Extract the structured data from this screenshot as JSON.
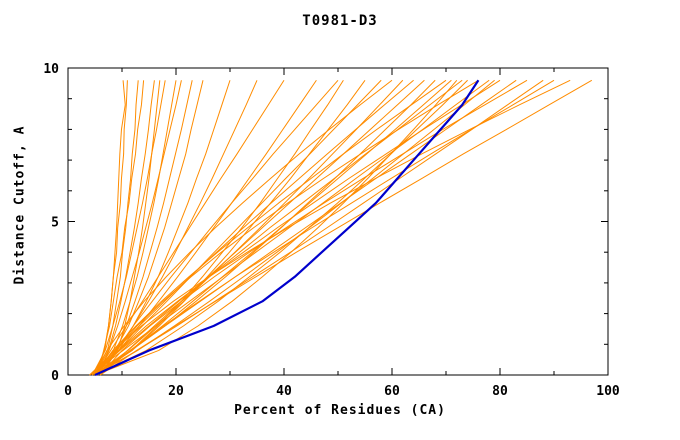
{
  "chart_data": {
    "type": "line",
    "title": "T0981-D3",
    "xlabel": "Percent of Residues (CA)",
    "ylabel": "Distance Cutoff, A",
    "xlim": [
      0,
      100
    ],
    "ylim": [
      0,
      10
    ],
    "x_major_ticks": [
      0,
      20,
      40,
      60,
      80,
      100
    ],
    "x_minor_ticks": [
      10,
      30,
      50,
      70,
      90
    ],
    "y_major_ticks": [
      0,
      5,
      10
    ],
    "y_minor_ticks": [
      1,
      2,
      3,
      4,
      6,
      7,
      8,
      9
    ],
    "grid": false,
    "legend": "none",
    "colors": {
      "model": "#ff8c00",
      "highlight": "#0000cc",
      "axis": "#000000",
      "background": "#ffffff"
    },
    "y_samples": [
      0,
      0.8,
      1.6,
      2.4,
      3.2,
      4.0,
      4.8,
      5.6,
      6.4,
      7.2,
      8.0,
      8.8,
      9.6
    ],
    "series": {
      "highlight": {
        "name": "selected-model",
        "color": "#0000cc",
        "x": [
          5,
          15,
          27,
          36,
          42,
          47,
          52,
          57,
          61,
          65,
          69,
          73,
          76
        ]
      },
      "models": [
        [
          5,
          6.7,
          7.5,
          8,
          8.4,
          9,
          9.2,
          9.7,
          9.9,
          10.3,
          10.4,
          10.8,
          11
        ],
        [
          4.5,
          7.3,
          8.3,
          9,
          9.7,
          10.1,
          10.7,
          11.1,
          11.6,
          11.9,
          12.4,
          12.6,
          13
        ],
        [
          5.5,
          6.6,
          7.7,
          8.4,
          9.1,
          10,
          10.5,
          11.3,
          11.8,
          12.5,
          12.9,
          13.6,
          14
        ],
        [
          5,
          7.5,
          8.8,
          9.8,
          10.7,
          11.5,
          12.3,
          13,
          13.6,
          14.3,
          14.9,
          15.4,
          16
        ],
        [
          6,
          9.2,
          10.5,
          11.5,
          12.3,
          13.1,
          13.8,
          14.4,
          15,
          15.5,
          16,
          16.5,
          17
        ],
        [
          4.5,
          6.9,
          8.3,
          9.6,
          10.8,
          11.8,
          12.8,
          13.8,
          14.7,
          15.5,
          16.4,
          17.2,
          18
        ],
        [
          5,
          8.4,
          10.1,
          11.5,
          12.8,
          13.9,
          14.9,
          15.9,
          16.8,
          17.6,
          18.4,
          19.2,
          20
        ],
        [
          5.5,
          7.6,
          9.2,
          10.6,
          11.9,
          13.2,
          14.4,
          15.6,
          16.7,
          17.8,
          18.9,
          20,
          21
        ],
        [
          6,
          9,
          10.8,
          12.4,
          13.9,
          15.2,
          16.5,
          17.7,
          18.8,
          19.9,
          21,
          22,
          23
        ],
        [
          4,
          8.7,
          11.2,
          13.1,
          14.9,
          16.4,
          17.9,
          19.2,
          20.5,
          21.8,
          22.8,
          23.9,
          25
        ],
        [
          5,
          6.8,
          7.5,
          8,
          8.4,
          8.7,
          9,
          9.2,
          9.4,
          9.6,
          9.9,
          10.6,
          10.2
        ],
        [
          5,
          9.4,
          12.1,
          14.5,
          16.7,
          18.6,
          20.4,
          22.2,
          23.8,
          25.5,
          27,
          28.5,
          30
        ],
        [
          5,
          9.1,
          12.1,
          14.9,
          17.5,
          19.9,
          22.2,
          24.5,
          26.7,
          28.8,
          30.9,
          33,
          35
        ],
        [
          5,
          7.9,
          10.8,
          13.8,
          16.7,
          19.6,
          22.5,
          25.4,
          28.3,
          31.3,
          34.2,
          37.1,
          40
        ],
        [
          5,
          9.4,
          13.2,
          16.8,
          20.3,
          23.7,
          27,
          30.3,
          33.5,
          36.7,
          39.8,
          42.9,
          46
        ],
        [
          6,
          8.9,
          12.1,
          15.6,
          19.1,
          22.8,
          26.5,
          30.3,
          34.2,
          38,
          42,
          46,
          50
        ],
        [
          4.5,
          11.7,
          16.6,
          21,
          24.9,
          28.6,
          32.2,
          35.6,
          38.8,
          42,
          45,
          48.1,
          51
        ],
        [
          5,
          11.9,
          16.9,
          21.5,
          25.8,
          29.9,
          33.7,
          37.5,
          41.2,
          44.7,
          48.2,
          51.7,
          55
        ],
        [
          5,
          9.4,
          13.8,
          18.3,
          22.7,
          27.1,
          31.5,
          35.9,
          40.3,
          44.8,
          49.2,
          53.6,
          58
        ],
        [
          5,
          7.2,
          10.4,
          14.1,
          18.2,
          22.6,
          27.3,
          32.3,
          37.5,
          42.8,
          48.4,
          54.1,
          60
        ],
        [
          5,
          11.1,
          16.3,
          21.4,
          26.2,
          30.9,
          35.6,
          40.1,
          44.6,
          49,
          53.4,
          57.7,
          62
        ],
        [
          5,
          8.8,
          13.2,
          17.9,
          22.6,
          27.5,
          32.5,
          37.6,
          42.8,
          48,
          53.3,
          58.6,
          64
        ],
        [
          6,
          11,
          16,
          21,
          26,
          31,
          36,
          41,
          46,
          51,
          56,
          61,
          66
        ],
        [
          4,
          11.7,
          18,
          23.7,
          29.2,
          34.4,
          39.5,
          44.4,
          49.4,
          54.1,
          58.8,
          63.5,
          68
        ],
        [
          5,
          8.3,
          12.6,
          17.3,
          22.4,
          27.7,
          33.3,
          39,
          45,
          51,
          57.2,
          63.6,
          70
        ],
        [
          5.5,
          11.7,
          17.5,
          23.1,
          28.6,
          34.1,
          39.4,
          44.7,
          50,
          55.3,
          60.6,
          65.8,
          71
        ],
        [
          4.5,
          9.6,
          15,
          20.5,
          26.1,
          31.8,
          37.4,
          43.4,
          49.3,
          55.1,
          61.1,
          67,
          73
        ],
        [
          5,
          14.5,
          21.4,
          27.8,
          33.6,
          39.3,
          44.6,
          49.9,
          54.9,
          59.8,
          64.6,
          69.4,
          74
        ],
        [
          6,
          8.8,
          12.8,
          17.6,
          22.8,
          28.4,
          34.4,
          40.7,
          47.3,
          54.2,
          61.2,
          68.5,
          76
        ],
        [
          4,
          10.2,
          16.3,
          22.5,
          28.7,
          34.8,
          41,
          47.2,
          53.3,
          59.5,
          65.7,
          71.8,
          78
        ],
        [
          5,
          12.9,
          19.7,
          26.2,
          32.5,
          38.7,
          44.7,
          50.6,
          56.4,
          62.1,
          67.8,
          73.4,
          79
        ],
        [
          5,
          9.4,
          14.5,
          20.3,
          26.2,
          32.5,
          38.8,
          45.4,
          52,
          58.9,
          65.8,
          72.9,
          80
        ],
        [
          5,
          16.8,
          24.1,
          30.4,
          36,
          41.3,
          46.3,
          51,
          55.5,
          59.8,
          64,
          68.1,
          72
        ],
        [
          5,
          11.5,
          18,
          24.5,
          31,
          37.5,
          44,
          50.5,
          57,
          63.5,
          70,
          76.5,
          83
        ],
        [
          6,
          10,
          15.2,
          21,
          27.1,
          33.6,
          40.4,
          47.4,
          54.6,
          62,
          69.4,
          77.2,
          85
        ],
        [
          5,
          12.8,
          20.2,
          27.2,
          34.2,
          41.2,
          48,
          54.7,
          61.4,
          68.1,
          74.8,
          81.4,
          88
        ],
        [
          6,
          11.5,
          17.7,
          24.3,
          31,
          38.1,
          45.2,
          52.5,
          59.8,
          67.2,
          74.7,
          82.4,
          90
        ],
        [
          5,
          8.5,
          13.6,
          19.5,
          26.1,
          33.2,
          40.7,
          48.6,
          56.9,
          65.5,
          74.4,
          83.6,
          93
        ],
        [
          6,
          12.7,
          19.9,
          27.3,
          34.8,
          42.3,
          50,
          57.7,
          65.5,
          73.2,
          81.2,
          89.1,
          97
        ]
      ]
    }
  }
}
